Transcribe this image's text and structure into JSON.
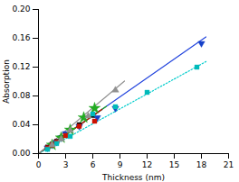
{
  "chart_data": {
    "type": "scatter",
    "xlabel": "Thickness (nm)",
    "ylabel": "Absorption",
    "xlim": [
      0,
      21
    ],
    "ylim": [
      0,
      0.2
    ],
    "xticks": [
      0,
      3,
      6,
      9,
      12,
      15,
      18,
      21
    ],
    "yticks": [
      {
        "value": 0,
        "label": "0.00"
      },
      {
        "value": 0.04,
        "label": "0.04"
      },
      {
        "value": 0.08,
        "label": "0.08"
      },
      {
        "value": 0.12,
        "label": "0.12"
      },
      {
        "value": 0.16,
        "label": "0.16"
      },
      {
        "value": 0.2,
        "label": "0.20"
      }
    ],
    "grid": false,
    "series": [
      {
        "type": "line",
        "color": "#111111",
        "line_style": "solid",
        "x": [
          0,
          7.0
        ],
        "values": [
          0,
          0.06125
        ]
      },
      {
        "type": "line",
        "color": "#2244dd",
        "line_style": "solid",
        "x": [
          0,
          18.5
        ],
        "values": [
          0,
          0.161875
        ]
      },
      {
        "type": "line",
        "color": "#22aa22",
        "line_style": "solid",
        "x": [
          0,
          7.5
        ],
        "values": [
          0,
          0.065625
        ]
      },
      {
        "type": "line",
        "color": "#cc1100",
        "line_style": "solid",
        "x": [
          0,
          7.0
        ],
        "values": [
          0,
          0.06125
        ]
      },
      {
        "type": "line",
        "color": "#00cccc",
        "line_style": "dotted",
        "x": [
          0,
          18.5
        ],
        "values": [
          0,
          0.12765
        ]
      },
      {
        "type": "line",
        "color": "#909090",
        "line_style": "solid",
        "x": [
          0,
          9.5
        ],
        "values": [
          0,
          0.1007
        ]
      },
      {
        "type": "scatter",
        "color": "#000000",
        "marker": "square",
        "x": [
          1.0,
          1.5,
          2.0,
          2.5,
          3.0,
          4.5,
          6.0
        ],
        "values": [
          0.009,
          0.013,
          0.017,
          0.022,
          0.027,
          0.04,
          0.053
        ]
      },
      {
        "type": "scatter",
        "color": "#1540c8",
        "marker": "triangle-down",
        "x": [
          1.0,
          1.5,
          2.0,
          2.5,
          3.0,
          4.5,
          6.5,
          8.5,
          18.0
        ],
        "values": [
          0.008,
          0.012,
          0.016,
          0.022,
          0.028,
          0.038,
          0.05,
          0.063,
          0.153
        ]
      },
      {
        "type": "scatter",
        "color": "#22aa22",
        "marker": "star",
        "x": [
          1.5,
          2.5,
          3.5,
          5.0,
          6.2
        ],
        "values": [
          0.012,
          0.022,
          0.033,
          0.05,
          0.063
        ]
      },
      {
        "type": "scatter",
        "color": "#cc1100",
        "marker": "square",
        "x": [
          1.0,
          1.5,
          2.0,
          3.0,
          4.5,
          6.2
        ],
        "values": [
          0.008,
          0.012,
          0.016,
          0.025,
          0.038,
          0.045
        ]
      },
      {
        "type": "scatter",
        "color": "#00baba",
        "marker": "square",
        "x": [
          1.0,
          2.0,
          3.5,
          6.0,
          8.5,
          12.0,
          17.5
        ],
        "values": [
          0.006,
          0.014,
          0.024,
          0.055,
          0.065,
          0.085,
          0.12
        ]
      },
      {
        "type": "scatter",
        "color": "#909090",
        "marker": "triangle-up",
        "x": [
          1.5,
          2.5,
          3.5,
          5.5,
          8.5
        ],
        "values": [
          0.012,
          0.02,
          0.032,
          0.052,
          0.088
        ]
      }
    ]
  }
}
